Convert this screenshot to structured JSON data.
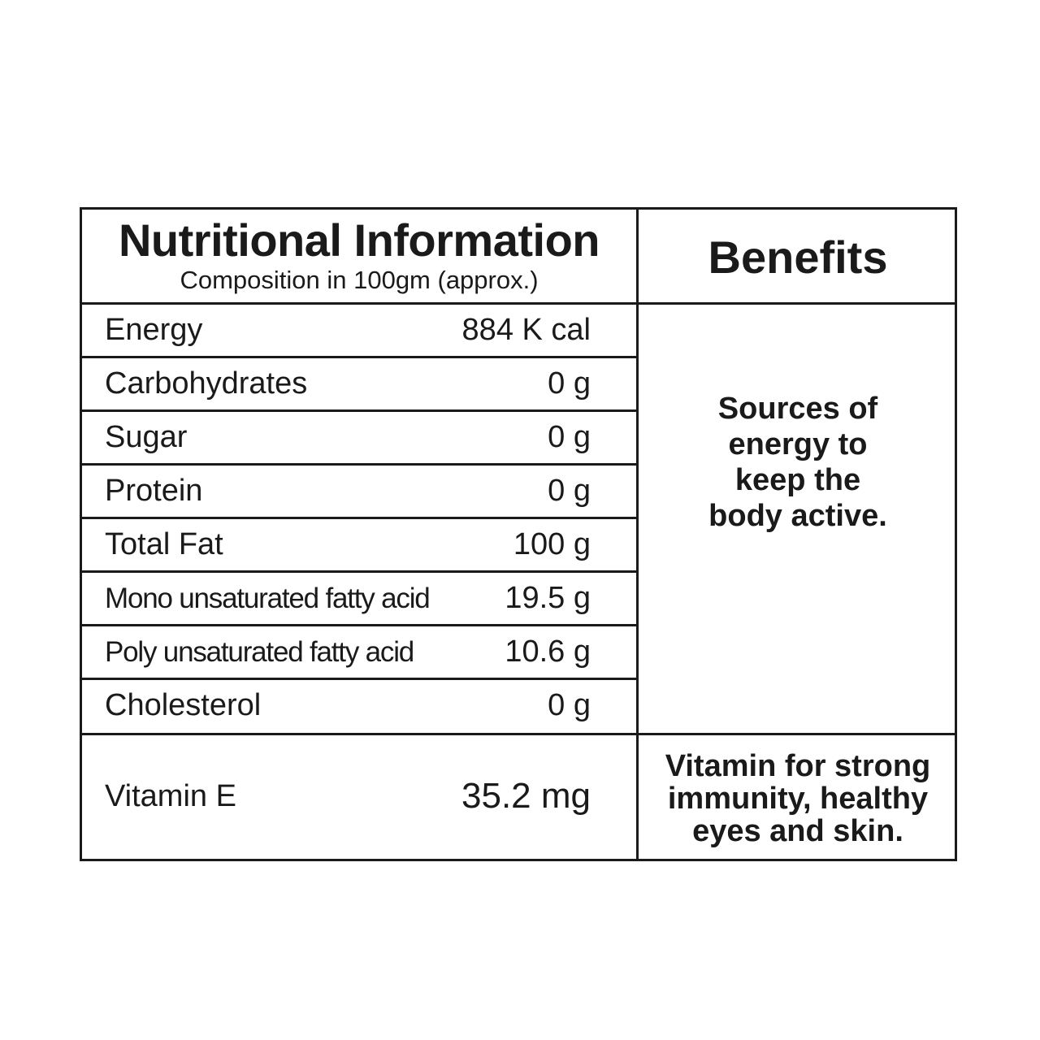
{
  "header": {
    "title": "Nutritional Information",
    "subtitle": "Composition in 100gm (approx.)",
    "benefits_title": "Benefits"
  },
  "nutrients": [
    {
      "label": "Energy",
      "value": "884 K cal"
    },
    {
      "label": "Carbohydrates",
      "value": "0 g"
    },
    {
      "label": "Sugar",
      "value": "0 g"
    },
    {
      "label": "Protein",
      "value": "0 g"
    },
    {
      "label": "Total Fat",
      "value": "100 g"
    },
    {
      "label": "Mono unsaturated fatty acid",
      "value": "19.5 g"
    },
    {
      "label": "Poly unsaturated fatty acid",
      "value": "10.6 g"
    },
    {
      "label": "Cholesterol",
      "value": "0 g"
    }
  ],
  "vitamin": {
    "label": "Vitamin E",
    "value": "35.2 mg"
  },
  "benefits": {
    "energy_lines": [
      "Sources of",
      "energy to",
      "keep the",
      "body active."
    ],
    "vitamin_lines": [
      "Vitamin for strong",
      "immunity, healthy",
      "eyes and skin."
    ]
  }
}
